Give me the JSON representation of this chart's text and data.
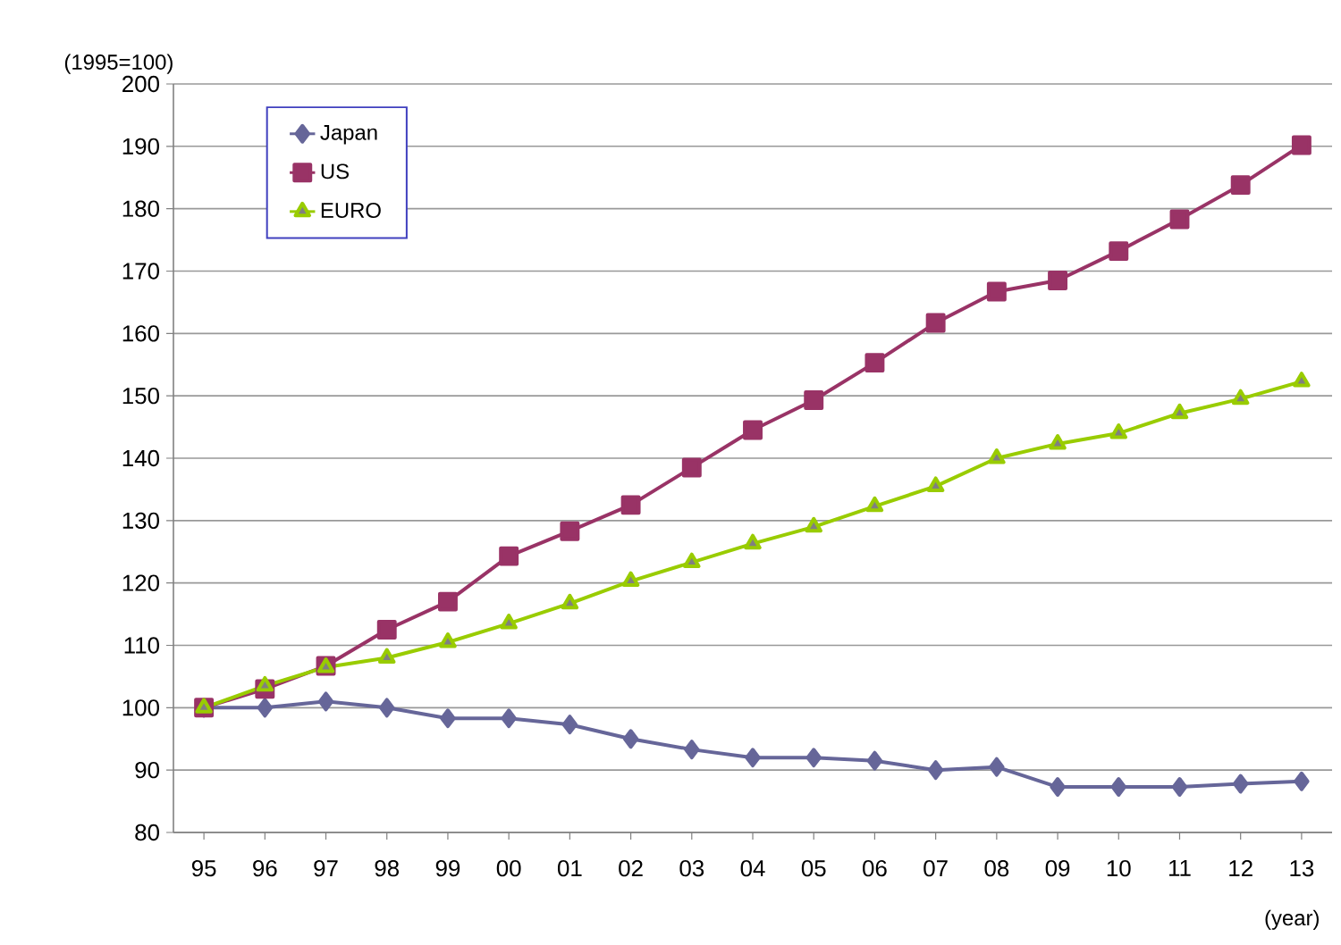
{
  "chart_data": {
    "type": "line",
    "ylabel": "(1995=100)",
    "xlabel": "(year)",
    "categories": [
      "95",
      "96",
      "97",
      "98",
      "99",
      "00",
      "01",
      "02",
      "03",
      "04",
      "05",
      "06",
      "07",
      "08",
      "09",
      "10",
      "11",
      "12",
      "13"
    ],
    "series": [
      {
        "name": "Japan",
        "color": "#666699",
        "marker": "diamond",
        "values": [
          100,
          100,
          101,
          100,
          98.3,
          98.3,
          97.3,
          95,
          93.3,
          92,
          92,
          91.5,
          90,
          90.5,
          87.3,
          87.3,
          87.3,
          87.8,
          88.2
        ]
      },
      {
        "name": "US",
        "color": "#993366",
        "marker": "square",
        "values": [
          100,
          103,
          106.7,
          112.5,
          117,
          124.3,
          128.3,
          132.5,
          138.5,
          144.5,
          149.3,
          155.3,
          161.7,
          166.7,
          168.5,
          173.2,
          178.3,
          183.8,
          190.2
        ]
      },
      {
        "name": "EURO",
        "color": "#99cc00",
        "marker": "triangle",
        "values": [
          100,
          103.5,
          106.5,
          108,
          110.5,
          113.5,
          116.7,
          120.3,
          123.3,
          126.3,
          129,
          132.3,
          135.5,
          140,
          142.3,
          144,
          147.2,
          149.5,
          152.3
        ]
      }
    ],
    "ylim": [
      80,
      200
    ],
    "yticks": [
      80,
      90,
      100,
      110,
      120,
      130,
      140,
      150,
      160,
      170,
      180,
      190,
      200
    ],
    "grid": "y",
    "legend": "top left"
  }
}
